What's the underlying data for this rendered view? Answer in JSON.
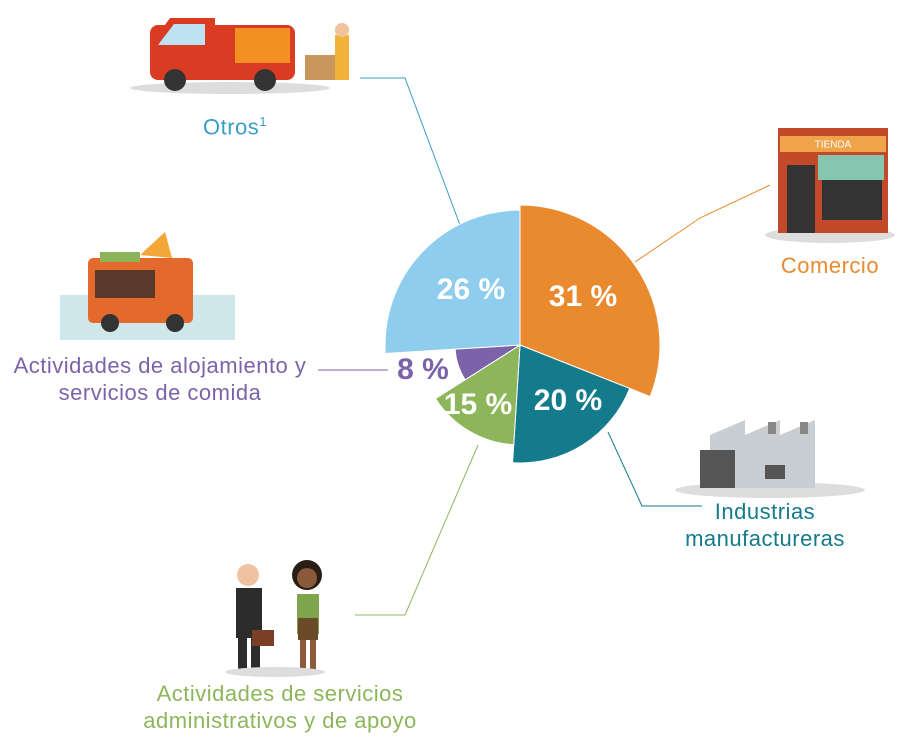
{
  "chart_data": {
    "type": "pie",
    "categories": [
      "Comercio",
      "Industrias manufactureras",
      "Actividades de servicios administrativos y de apoyo",
      "Actividades de alojamiento y servicios de comida",
      "Otros"
    ],
    "footnote_marker": "1",
    "values": [
      31,
      20,
      15,
      8,
      26
    ],
    "value_labels": [
      "31 %",
      "20 %",
      "15 %",
      "8 %",
      "26 %"
    ],
    "colors": [
      "#e98a2f",
      "#137b8b",
      "#8db65b",
      "#7c63a9",
      "#8fcdef"
    ],
    "label_colors": [
      "#e98a2f",
      "#137b8b",
      "#8db65b",
      "#7c63a9",
      "#3a9dc6"
    ]
  }
}
